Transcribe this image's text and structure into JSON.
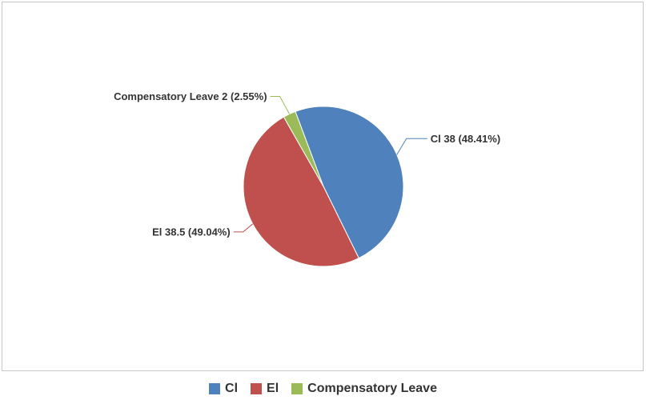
{
  "chart_data": {
    "type": "pie",
    "series": [
      {
        "name": "Cl",
        "value": 38,
        "percent": 48.41,
        "color": "#4f81bd",
        "label": "Cl 38 (48.41%)"
      },
      {
        "name": "El",
        "value": 38.5,
        "percent": 49.04,
        "color": "#c0504d",
        "label": "El 38.5 (49.04%)"
      },
      {
        "name": "Compensatory Leave",
        "value": 2,
        "percent": 2.55,
        "color": "#9bbb59",
        "label": "Compensatory Leave 2 (2.55%)"
      }
    ],
    "legend_position": "bottom"
  },
  "legend": {
    "items": [
      {
        "label": "Cl",
        "color": "#4f81bd"
      },
      {
        "label": "El",
        "color": "#c0504d"
      },
      {
        "label": "Compensatory Leave",
        "color": "#9bbb59"
      }
    ]
  }
}
